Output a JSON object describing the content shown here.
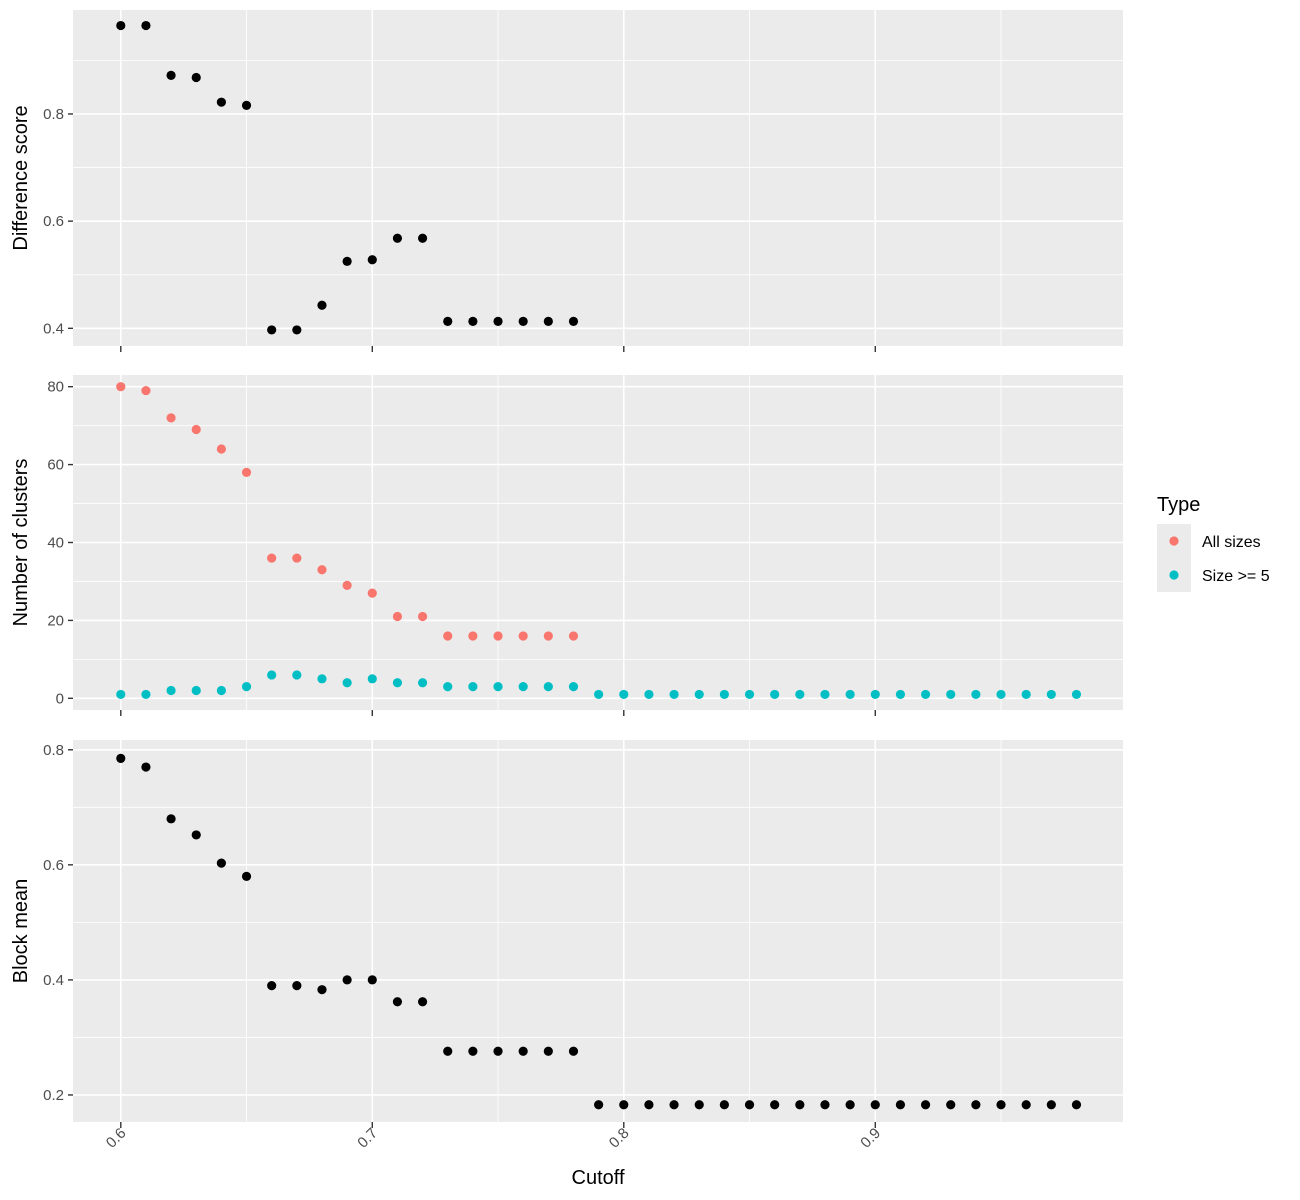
{
  "chart_data": {
    "type": "scatter",
    "xlabel": "Cutoff",
    "x_ticks": [
      0.6,
      0.7,
      0.8,
      0.9
    ],
    "xlim": [
      0.581,
      0.9985
    ],
    "panels": [
      {
        "ylabel": "Difference score",
        "ylim": [
          0.367,
          0.994
        ],
        "y_ticks": [
          0.4,
          0.6,
          0.8
        ],
        "y_minor": [
          0.5,
          0.7,
          0.9
        ],
        "series": [
          {
            "color": "#000000",
            "points": [
              [
                0.6,
                0.965
              ],
              [
                0.61,
                0.965
              ],
              [
                0.62,
                0.872
              ],
              [
                0.63,
                0.868
              ],
              [
                0.64,
                0.822
              ],
              [
                0.65,
                0.816
              ],
              [
                0.66,
                0.397
              ],
              [
                0.67,
                0.397
              ],
              [
                0.68,
                0.443
              ],
              [
                0.69,
                0.525
              ],
              [
                0.7,
                0.528
              ],
              [
                0.71,
                0.568
              ],
              [
                0.72,
                0.568
              ],
              [
                0.73,
                0.413
              ],
              [
                0.74,
                0.413
              ],
              [
                0.75,
                0.413
              ],
              [
                0.76,
                0.413
              ],
              [
                0.77,
                0.413
              ],
              [
                0.78,
                0.413
              ]
            ]
          }
        ]
      },
      {
        "ylabel": "Number of clusters",
        "ylim": [
          -3,
          83
        ],
        "y_ticks": [
          0,
          20,
          40,
          60,
          80
        ],
        "y_minor": [
          10,
          30,
          50,
          70
        ],
        "series": [
          {
            "name": "All sizes",
            "color": "#F8766D",
            "points": [
              [
                0.6,
                80
              ],
              [
                0.61,
                79
              ],
              [
                0.62,
                72
              ],
              [
                0.63,
                69
              ],
              [
                0.64,
                64
              ],
              [
                0.65,
                58
              ],
              [
                0.66,
                36
              ],
              [
                0.67,
                36
              ],
              [
                0.68,
                33
              ],
              [
                0.69,
                29
              ],
              [
                0.7,
                27
              ],
              [
                0.71,
                21
              ],
              [
                0.72,
                21
              ],
              [
                0.73,
                16
              ],
              [
                0.74,
                16
              ],
              [
                0.75,
                16
              ],
              [
                0.76,
                16
              ],
              [
                0.77,
                16
              ],
              [
                0.78,
                16
              ]
            ]
          },
          {
            "name": "Size >= 5",
            "color": "#00BFC4",
            "points": [
              [
                0.6,
                1
              ],
              [
                0.61,
                1
              ],
              [
                0.62,
                2
              ],
              [
                0.63,
                2
              ],
              [
                0.64,
                2
              ],
              [
                0.65,
                3
              ],
              [
                0.66,
                6
              ],
              [
                0.67,
                6
              ],
              [
                0.68,
                5
              ],
              [
                0.69,
                4
              ],
              [
                0.7,
                5
              ],
              [
                0.71,
                4
              ],
              [
                0.72,
                4
              ],
              [
                0.73,
                3
              ],
              [
                0.74,
                3
              ],
              [
                0.75,
                3
              ],
              [
                0.76,
                3
              ],
              [
                0.77,
                3
              ],
              [
                0.78,
                3
              ],
              [
                0.79,
                1
              ],
              [
                0.8,
                1
              ],
              [
                0.81,
                1
              ],
              [
                0.82,
                1
              ],
              [
                0.83,
                1
              ],
              [
                0.84,
                1
              ],
              [
                0.85,
                1
              ],
              [
                0.86,
                1
              ],
              [
                0.87,
                1
              ],
              [
                0.88,
                1
              ],
              [
                0.89,
                1
              ],
              [
                0.9,
                1
              ],
              [
                0.91,
                1
              ],
              [
                0.92,
                1
              ],
              [
                0.93,
                1
              ],
              [
                0.94,
                1
              ],
              [
                0.95,
                1
              ],
              [
                0.96,
                1
              ],
              [
                0.97,
                1
              ],
              [
                0.98,
                1
              ]
            ]
          }
        ]
      },
      {
        "ylabel": "Block mean",
        "ylim": [
          0.153,
          0.817
        ],
        "y_ticks": [
          0.2,
          0.4,
          0.6,
          0.8
        ],
        "y_minor": [
          0.3,
          0.5,
          0.7
        ],
        "series": [
          {
            "color": "#000000",
            "points": [
              [
                0.6,
                0.785
              ],
              [
                0.61,
                0.77
              ],
              [
                0.62,
                0.68
              ],
              [
                0.63,
                0.652
              ],
              [
                0.64,
                0.603
              ],
              [
                0.65,
                0.58
              ],
              [
                0.66,
                0.39
              ],
              [
                0.67,
                0.39
              ],
              [
                0.68,
                0.383
              ],
              [
                0.69,
                0.4
              ],
              [
                0.7,
                0.4
              ],
              [
                0.71,
                0.362
              ],
              [
                0.72,
                0.362
              ],
              [
                0.73,
                0.276
              ],
              [
                0.74,
                0.276
              ],
              [
                0.75,
                0.276
              ],
              [
                0.76,
                0.276
              ],
              [
                0.77,
                0.276
              ],
              [
                0.78,
                0.276
              ],
              [
                0.79,
                0.183
              ],
              [
                0.8,
                0.183
              ],
              [
                0.81,
                0.183
              ],
              [
                0.82,
                0.183
              ],
              [
                0.83,
                0.183
              ],
              [
                0.84,
                0.183
              ],
              [
                0.85,
                0.183
              ],
              [
                0.86,
                0.183
              ],
              [
                0.87,
                0.183
              ],
              [
                0.88,
                0.183
              ],
              [
                0.89,
                0.183
              ],
              [
                0.9,
                0.183
              ],
              [
                0.91,
                0.183
              ],
              [
                0.92,
                0.183
              ],
              [
                0.93,
                0.183
              ],
              [
                0.94,
                0.183
              ],
              [
                0.95,
                0.183
              ],
              [
                0.96,
                0.183
              ],
              [
                0.97,
                0.183
              ],
              [
                0.98,
                0.183
              ]
            ]
          }
        ]
      }
    ],
    "legend": {
      "title": "Type",
      "placement": "right",
      "items": [
        {
          "label": "All sizes",
          "color": "#F8766D"
        },
        {
          "label": "Size >= 5",
          "color": "#00BFC4"
        }
      ]
    }
  }
}
